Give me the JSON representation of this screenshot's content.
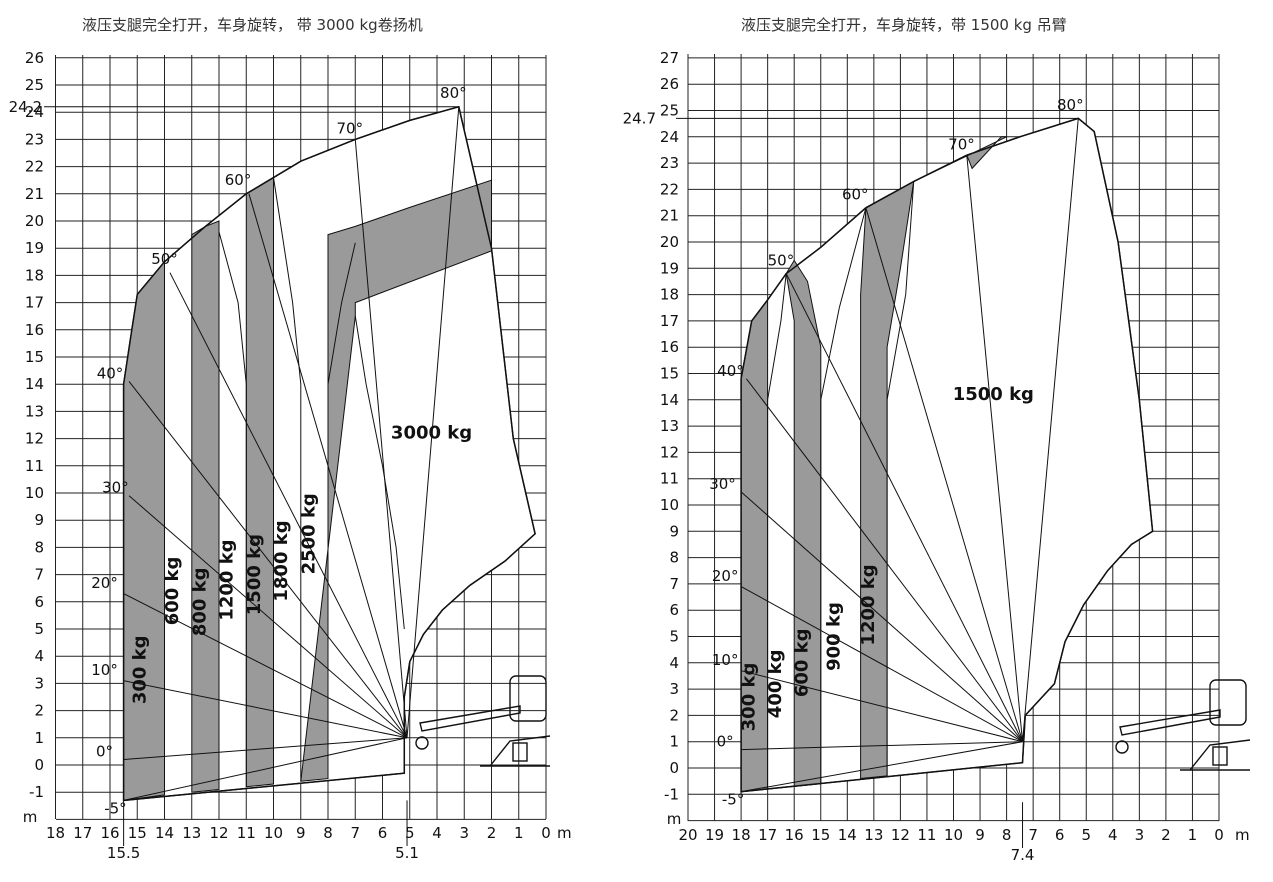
{
  "chart_data": [
    {
      "type": "load-chart",
      "title": "液压支腿完全打开，车身旋转， 带 3000 kg卷扬机",
      "x_unit": "m",
      "y_unit": "m",
      "xlim": [
        18,
        0
      ],
      "ylim": [
        -2,
        26
      ],
      "x_ticks": [
        "18",
        "17",
        "16",
        "15",
        "14",
        "13",
        "12",
        "11",
        "10",
        "9",
        "8",
        "7",
        "6",
        "5",
        "4",
        "3",
        "2",
        "1",
        "0"
      ],
      "y_ticks": [
        "-1",
        "0",
        "1",
        "2",
        "3",
        "4",
        "5",
        "6",
        "7",
        "8",
        "9",
        "10",
        "11",
        "12",
        "13",
        "14",
        "15",
        "16",
        "17",
        "18",
        "19",
        "20",
        "21",
        "22",
        "23",
        "24",
        "25",
        "26"
      ],
      "max_height_label": "24.2",
      "max_height": 24.2,
      "x_extra_labels": [
        {
          "x": 15.5,
          "label": "15.5"
        },
        {
          "x": 5.1,
          "label": "5.1"
        }
      ],
      "boom_angles": [
        {
          "label": "-5°",
          "tip": [
            15.5,
            -1.3
          ]
        },
        {
          "label": "0°",
          "tip": [
            15.5,
            0.2
          ]
        },
        {
          "label": "10°",
          "tip": [
            15.5,
            3.1
          ]
        },
        {
          "label": "20°",
          "tip": [
            15.5,
            6.3
          ]
        },
        {
          "label": "30°",
          "tip": [
            15.3,
            9.9
          ]
        },
        {
          "label": "40°",
          "tip": [
            15.3,
            14.1
          ]
        },
        {
          "label": "50°",
          "tip": [
            13.8,
            18.1
          ]
        },
        {
          "label": "60°",
          "tip": [
            10.9,
            21.0
          ]
        },
        {
          "label": "70°",
          "tip": [
            7.0,
            23.0
          ]
        },
        {
          "label": "80°",
          "tip": [
            3.2,
            24.2
          ]
        }
      ],
      "load_zones": [
        {
          "load": "300 kg",
          "x_range": [
            15.5,
            14.0
          ]
        },
        {
          "load": "600 kg",
          "x_range": [
            14.0,
            13.0
          ]
        },
        {
          "load": "800 kg",
          "x_range": [
            13.0,
            12.0
          ]
        },
        {
          "load": "1200 kg",
          "x_range": [
            12.0,
            11.0
          ]
        },
        {
          "load": "1500 kg",
          "x_range": [
            11.0,
            10.0
          ]
        },
        {
          "load": "1800 kg",
          "x_range": [
            10.0,
            9.0
          ]
        },
        {
          "load": "2500 kg",
          "x_range": [
            9.0,
            8.0
          ]
        },
        {
          "load": "3000 kg",
          "x_range": [
            8.0,
            0.4
          ]
        }
      ]
    },
    {
      "type": "load-chart",
      "title": "液压支腿完全打开，车身旋转，带 1500 kg 吊臂",
      "x_unit": "m",
      "y_unit": "m",
      "xlim": [
        20,
        0
      ],
      "ylim": [
        -2,
        27
      ],
      "x_ticks": [
        "20",
        "19",
        "18",
        "17",
        "16",
        "15",
        "14",
        "13",
        "12",
        "11",
        "10",
        "9",
        "8",
        "7",
        "6",
        "5",
        "4",
        "3",
        "2",
        "1",
        "0"
      ],
      "y_ticks": [
        "-1",
        "0",
        "1",
        "2",
        "3",
        "4",
        "5",
        "6",
        "7",
        "8",
        "9",
        "10",
        "11",
        "12",
        "13",
        "14",
        "15",
        "16",
        "17",
        "18",
        "19",
        "20",
        "21",
        "22",
        "23",
        "24",
        "25",
        "26",
        "27"
      ],
      "max_height_label": "24.7",
      "max_height": 24.7,
      "x_extra_labels": [
        {
          "x": 7.4,
          "label": "7.4"
        }
      ],
      "boom_angles": [
        {
          "label": "-5°",
          "tip": [
            18.0,
            -0.9
          ]
        },
        {
          "label": "0°",
          "tip": [
            18.0,
            0.7
          ]
        },
        {
          "label": "10°",
          "tip": [
            18.0,
            3.7
          ]
        },
        {
          "label": "20°",
          "tip": [
            18.0,
            6.9
          ]
        },
        {
          "label": "30°",
          "tip": [
            18.0,
            10.5
          ]
        },
        {
          "label": "40°",
          "tip": [
            17.8,
            14.8
          ]
        },
        {
          "label": "50°",
          "tip": [
            16.3,
            18.8
          ]
        },
        {
          "label": "60°",
          "tip": [
            13.3,
            21.3
          ]
        },
        {
          "label": "70°",
          "tip": [
            9.5,
            23.3
          ]
        },
        {
          "label": "80°",
          "tip": [
            5.3,
            24.7
          ]
        }
      ],
      "load_zones": [
        {
          "load": "300 kg",
          "x_range": [
            18.0,
            17.0
          ]
        },
        {
          "load": "400 kg",
          "x_range": [
            17.0,
            16.0
          ]
        },
        {
          "load": "600 kg",
          "x_range": [
            16.0,
            15.0
          ]
        },
        {
          "load": "900 kg",
          "x_range": [
            15.0,
            13.5
          ]
        },
        {
          "load": "1200 kg",
          "x_range": [
            13.5,
            12.5
          ]
        },
        {
          "load": "1500 kg",
          "x_range": [
            12.5,
            2.5
          ]
        }
      ]
    }
  ]
}
